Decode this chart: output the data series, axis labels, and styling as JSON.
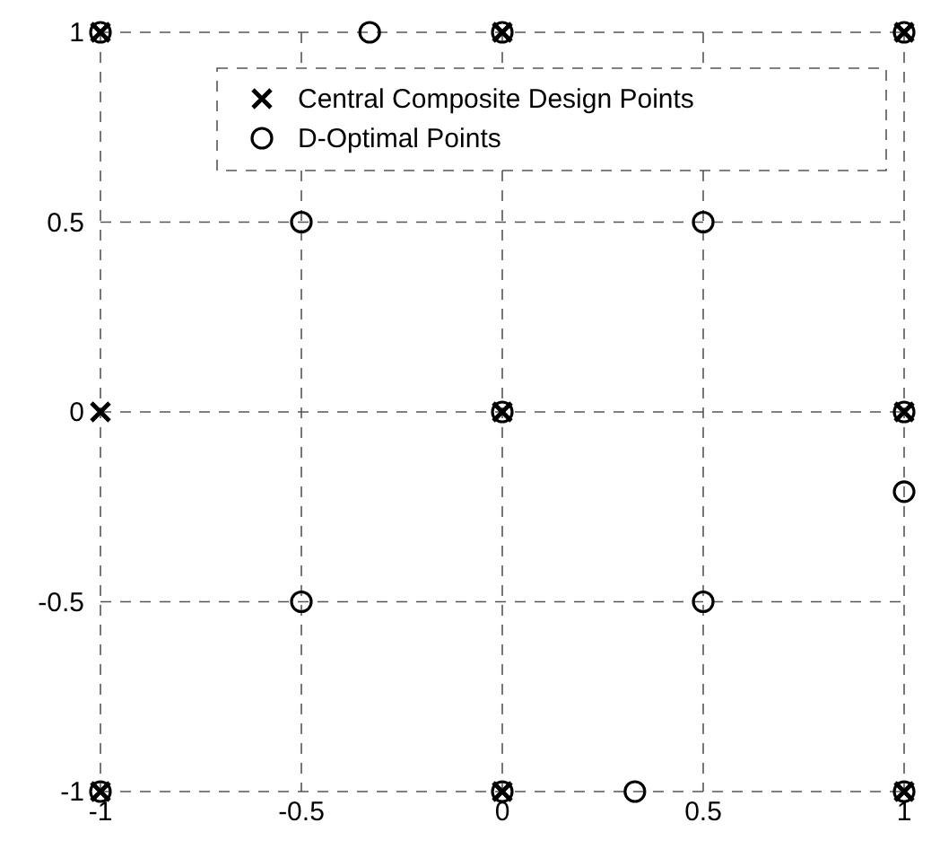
{
  "chart_data": {
    "type": "scatter",
    "xlim": [
      -1,
      1
    ],
    "ylim": [
      -1,
      1
    ],
    "xticks": [
      -1,
      -0.5,
      0,
      0.5,
      1
    ],
    "yticks": [
      -1,
      -0.5,
      0,
      0.5,
      1
    ],
    "grid": true,
    "legend": "top right",
    "series": [
      {
        "name": "Central Composite Design Points",
        "color": "#000000",
        "marker": "cross",
        "x": [
          -1,
          0,
          1,
          -1,
          0,
          1,
          -1,
          0,
          1
        ],
        "values": [
          1,
          1,
          1,
          0,
          0,
          0,
          -1,
          -1,
          -1
        ]
      },
      {
        "name": "D-Optimal Points",
        "color": "#000000",
        "marker": "circle",
        "x": [
          -1,
          -0.33,
          0,
          1,
          -0.5,
          0.5,
          0,
          1,
          1,
          -0.5,
          0.5,
          -1,
          0,
          0.33,
          1
        ],
        "values": [
          1,
          1,
          1,
          1,
          0.5,
          0.5,
          0,
          0,
          -0.21,
          -0.5,
          -0.5,
          -1,
          -1,
          -1,
          -1
        ]
      }
    ]
  }
}
